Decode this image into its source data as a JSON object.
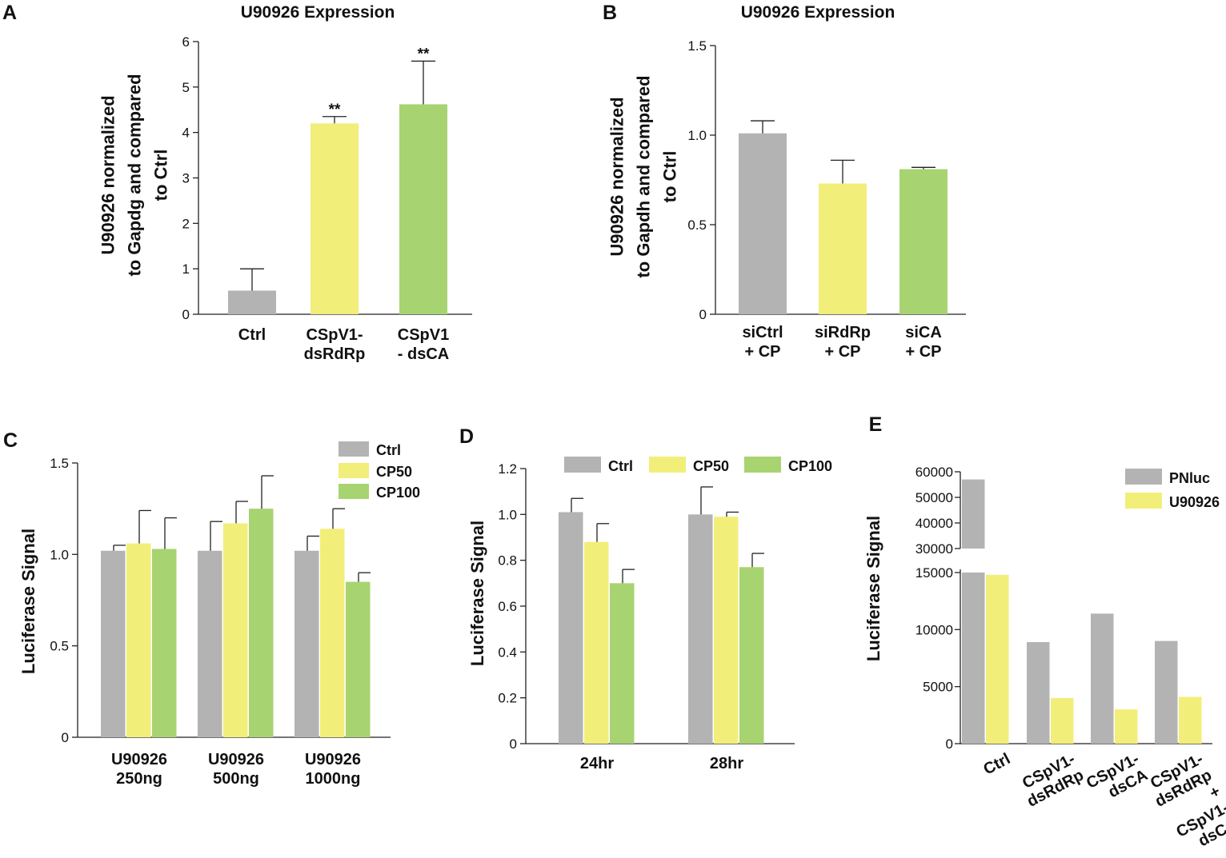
{
  "colors": {
    "gray": "#b3b3b3",
    "yellow": "#f2ee7a",
    "green": "#a8d371",
    "axis": "#222222"
  },
  "chart_data": [
    {
      "panel": "A",
      "type": "bar",
      "title": "U90926 Expression",
      "ylabel": [
        "U90926 normalized",
        "to Gapdg and compared",
        "to Ctrl"
      ],
      "ylim": [
        0,
        6
      ],
      "yticks": [
        0,
        1,
        2,
        3,
        4,
        5,
        6
      ],
      "categories": [
        [
          "Ctrl"
        ],
        [
          "CSpV1-",
          "dsRdRp"
        ],
        [
          "CSpV1",
          "- dsCA"
        ]
      ],
      "values": [
        0.52,
        4.2,
        4.62
      ],
      "errors": [
        0.48,
        0.15,
        0.95
      ],
      "colors": [
        "gray",
        "yellow",
        "green"
      ],
      "significance": [
        "",
        "**",
        "**"
      ]
    },
    {
      "panel": "B",
      "type": "bar",
      "title": "U90926 Expression",
      "ylabel": [
        "U90926 normalized",
        "to Gapdh and compared",
        "to Ctrl"
      ],
      "ylim": [
        0,
        1.5
      ],
      "yticks": [
        0,
        0.5,
        1.0,
        1.5
      ],
      "ytick_labels": [
        "0",
        "0.5",
        "1.0",
        "1.5"
      ],
      "categories": [
        [
          "siCtrl",
          "+ CP"
        ],
        [
          "siRdRp",
          "+ CP"
        ],
        [
          "siCA",
          "+ CP"
        ]
      ],
      "values": [
        1.01,
        0.73,
        0.81
      ],
      "errors": [
        0.07,
        0.13,
        0.01
      ],
      "colors": [
        "gray",
        "yellow",
        "green"
      ]
    },
    {
      "panel": "C",
      "type": "bar",
      "ylabel": "Luciferase Signal",
      "ylim": [
        0,
        1.5
      ],
      "yticks": [
        0,
        0.5,
        1.0,
        1.5
      ],
      "ytick_labels": [
        "0",
        "0.5",
        "1.0",
        "1.5"
      ],
      "categories": [
        [
          "U90926",
          "250ng"
        ],
        [
          "U90926",
          "500ng"
        ],
        [
          "U90926",
          "1000ng"
        ]
      ],
      "series": [
        {
          "name": "Ctrl",
          "color": "gray",
          "values": [
            1.02,
            1.02,
            1.02
          ],
          "errors": [
            0.03,
            0.16,
            0.08
          ]
        },
        {
          "name": "CP50",
          "color": "yellow",
          "values": [
            1.06,
            1.17,
            1.14
          ],
          "errors": [
            0.18,
            0.12,
            0.11
          ]
        },
        {
          "name": "CP100",
          "color": "green",
          "values": [
            1.03,
            1.25,
            0.85
          ],
          "errors": [
            0.17,
            0.18,
            0.05
          ]
        }
      ],
      "legend": "top-right, stacked"
    },
    {
      "panel": "D",
      "type": "bar",
      "ylabel": "Luciferase Signal",
      "ylim": [
        0,
        1.2
      ],
      "yticks": [
        0,
        0.2,
        0.4,
        0.6,
        0.8,
        1.0,
        1.2
      ],
      "ytick_labels": [
        "0",
        "0.2",
        "0.4",
        "0.6",
        "0.8",
        "1.0",
        "1.2"
      ],
      "categories": [
        [
          "24hr"
        ],
        [
          "28hr"
        ]
      ],
      "series": [
        {
          "name": "Ctrl",
          "color": "gray",
          "values": [
            1.01,
            1.0
          ],
          "errors": [
            0.06,
            0.12
          ]
        },
        {
          "name": "CP50",
          "color": "yellow",
          "values": [
            0.88,
            0.99
          ],
          "errors": [
            0.08,
            0.02
          ]
        },
        {
          "name": "CP100",
          "color": "green",
          "values": [
            0.7,
            0.77
          ],
          "errors": [
            0.06,
            0.06
          ]
        }
      ],
      "legend": "top, horizontal"
    },
    {
      "panel": "E",
      "type": "bar",
      "ylabel": "Luciferase Signal",
      "broken_axis": {
        "lower": [
          0,
          15000
        ],
        "upper": [
          30000,
          60000
        ]
      },
      "yticks_lower": [
        0,
        5000,
        10000,
        15000
      ],
      "yticks_upper": [
        30000,
        40000,
        50000,
        60000
      ],
      "categories": [
        [
          "Ctrl"
        ],
        [
          "CSpV1-",
          "dsRdRp"
        ],
        [
          "CSpV1-",
          "dsCA"
        ],
        [
          "CSpV1-",
          "dsRdRp",
          "+",
          "CSpV1-",
          "dsCA"
        ]
      ],
      "series": [
        {
          "name": "PNluc",
          "color": "gray",
          "values": [
            57000,
            8900,
            11400,
            9000
          ]
        },
        {
          "name": "U90926",
          "color": "yellow",
          "values": [
            14800,
            4000,
            3000,
            4100
          ]
        }
      ],
      "legend": "top-right, stacked"
    }
  ]
}
